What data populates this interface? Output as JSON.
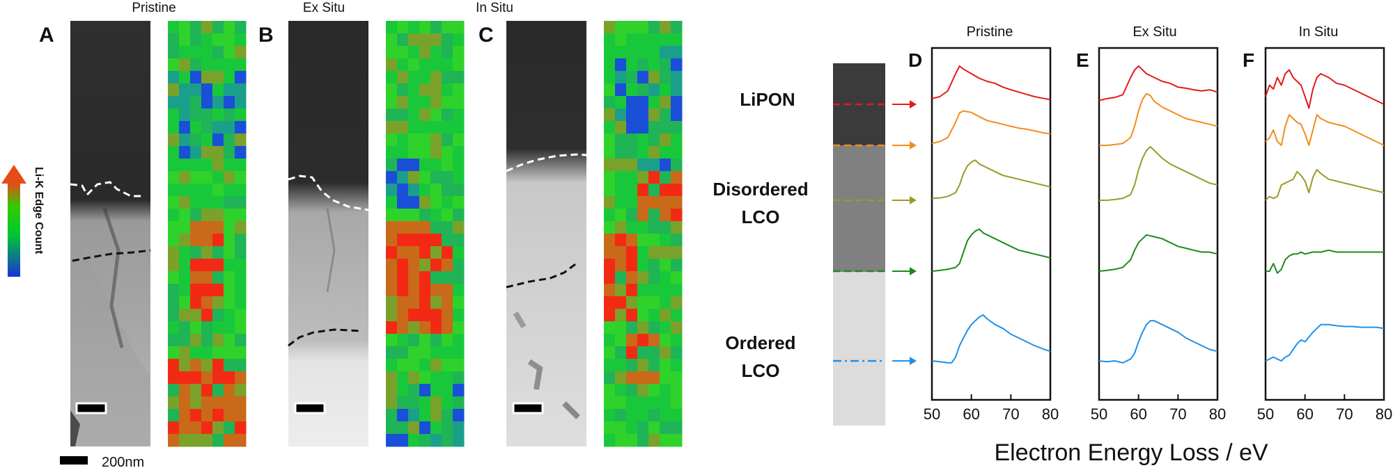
{
  "panels_left": [
    {
      "letter": "A",
      "title": "Pristine"
    },
    {
      "letter": "B",
      "title": "Ex Situ"
    },
    {
      "letter": "C",
      "title": "In Situ"
    }
  ],
  "colorbar_label": "Li-K Edge Count",
  "scale_bar_label": "200nm",
  "layers": {
    "lipon": "LiPON",
    "disordered_line1": "Disordered",
    "disordered_line2": "LCO",
    "ordered_line1": "Ordered",
    "ordered_line2": "LCO"
  },
  "panels_right": [
    {
      "letter": "D",
      "title": "Pristine"
    },
    {
      "letter": "E",
      "title": "Ex Situ"
    },
    {
      "letter": "F",
      "title": "In Situ"
    }
  ],
  "x_axis_label": "Electron Energy Loss / eV",
  "chart_data": {
    "type": "line",
    "xlabel": "Electron Energy Loss / eV",
    "ylabel": "",
    "xlim": [
      50,
      80
    ],
    "xticks": [
      50,
      60,
      70,
      80
    ],
    "yticks_shown": false,
    "panels": [
      {
        "title": "Pristine",
        "series": [
          {
            "color": "#e31a1c",
            "x": [
              50,
              52,
              54,
              56,
              57,
              58,
              60,
              62,
              64,
              66,
              68,
              70,
              72,
              74,
              76,
              78,
              80
            ],
            "y": [
              0.15,
              0.2,
              0.35,
              0.8,
              1.0,
              0.92,
              0.8,
              0.68,
              0.6,
              0.55,
              0.45,
              0.38,
              0.32,
              0.26,
              0.2,
              0.16,
              0.12
            ]
          },
          {
            "color": "#f28c1e",
            "x": [
              50,
              52,
              54,
              56,
              57,
              58,
              60,
              62,
              64,
              66,
              68,
              70,
              72,
              74,
              76,
              78,
              80
            ],
            "y": [
              0.05,
              0.1,
              0.2,
              0.6,
              0.85,
              0.9,
              0.86,
              0.75,
              0.65,
              0.6,
              0.55,
              0.5,
              0.45,
              0.42,
              0.38,
              0.33,
              0.3
            ]
          },
          {
            "color": "#9a9a2a",
            "x": [
              50,
              52,
              54,
              56,
              57,
              58,
              59,
              60,
              61,
              62,
              64,
              66,
              68,
              70,
              72,
              74,
              76,
              78,
              80
            ],
            "y": [
              0.05,
              0.06,
              0.1,
              0.2,
              0.4,
              0.7,
              0.9,
              1.0,
              1.05,
              0.95,
              0.85,
              0.75,
              0.65,
              0.6,
              0.55,
              0.5,
              0.45,
              0.4,
              0.35
            ]
          },
          {
            "color": "#1d8a1d",
            "x": [
              50,
              52,
              54,
              56,
              57,
              58,
              59,
              60,
              61,
              62,
              63,
              64,
              66,
              68,
              70,
              72,
              74,
              76,
              78,
              80
            ],
            "y": [
              0.0,
              0.02,
              0.05,
              0.1,
              0.2,
              0.5,
              0.8,
              0.95,
              1.05,
              1.1,
              1.0,
              0.95,
              0.85,
              0.75,
              0.65,
              0.55,
              0.5,
              0.45,
              0.4,
              0.35
            ]
          },
          {
            "color": "#1e90e8",
            "x": [
              50,
              52,
              54,
              55,
              56,
              57,
              58,
              59,
              60,
              61,
              62,
              63,
              64,
              66,
              68,
              70,
              72,
              74,
              76,
              78,
              80
            ],
            "y": [
              0.0,
              -0.02,
              -0.05,
              -0.05,
              0.1,
              0.4,
              0.6,
              0.8,
              0.95,
              1.05,
              1.15,
              1.2,
              1.1,
              0.95,
              0.85,
              0.7,
              0.6,
              0.5,
              0.4,
              0.32,
              0.25
            ]
          }
        ]
      },
      {
        "title": "Ex Situ",
        "series": [
          {
            "color": "#e31a1c",
            "x": [
              50,
              52,
              54,
              56,
              58,
              59,
              60,
              62,
              64,
              66,
              68,
              70,
              72,
              74,
              76,
              78,
              80
            ],
            "y": [
              0.1,
              0.15,
              0.18,
              0.25,
              0.7,
              0.9,
              1.0,
              0.8,
              0.7,
              0.6,
              0.55,
              0.45,
              0.42,
              0.38,
              0.35,
              0.38,
              0.32
            ]
          },
          {
            "color": "#f28c1e",
            "x": [
              50,
              52,
              54,
              56,
              58,
              59,
              60,
              61,
              62,
              63,
              64,
              66,
              68,
              70,
              72,
              74,
              76,
              78,
              80
            ],
            "y": [
              0.0,
              0.0,
              0.02,
              0.05,
              0.2,
              0.5,
              0.9,
              1.2,
              1.35,
              1.3,
              1.15,
              1.0,
              0.9,
              0.8,
              0.7,
              0.65,
              0.6,
              0.55,
              0.5
            ]
          },
          {
            "color": "#9a9a2a",
            "x": [
              50,
              52,
              54,
              56,
              58,
              59,
              60,
              61,
              62,
              63,
              64,
              66,
              68,
              70,
              72,
              74,
              76,
              78,
              80
            ],
            "y": [
              0.0,
              0.0,
              0.02,
              0.05,
              0.15,
              0.4,
              0.8,
              1.1,
              1.3,
              1.4,
              1.3,
              1.1,
              0.95,
              0.85,
              0.75,
              0.65,
              0.55,
              0.45,
              0.4
            ]
          },
          {
            "color": "#1d8a1d",
            "x": [
              50,
              52,
              54,
              56,
              58,
              59,
              60,
              62,
              64,
              66,
              68,
              70,
              72,
              74,
              76,
              78,
              80
            ],
            "y": [
              0.0,
              0.02,
              0.05,
              0.1,
              0.3,
              0.55,
              0.75,
              0.95,
              0.9,
              0.85,
              0.75,
              0.65,
              0.6,
              0.55,
              0.5,
              0.5,
              0.45
            ]
          },
          {
            "color": "#1e90e8",
            "x": [
              50,
              52,
              54,
              56,
              58,
              59,
              60,
              61,
              62,
              63,
              64,
              66,
              68,
              70,
              72,
              74,
              76,
              78,
              80
            ],
            "y": [
              0.0,
              -0.02,
              0.0,
              -0.05,
              0.05,
              0.2,
              0.5,
              0.75,
              0.95,
              1.05,
              1.05,
              0.95,
              0.85,
              0.75,
              0.6,
              0.5,
              0.4,
              0.3,
              0.25
            ]
          }
        ]
      },
      {
        "title": "In Situ",
        "series": [
          {
            "color": "#e31a1c",
            "x": [
              50,
              51,
              52,
              53,
              54,
              55,
              56,
              57,
              58,
              59,
              60,
              61,
              62,
              63,
              64,
              66,
              68,
              70,
              72,
              74,
              76,
              78,
              80
            ],
            "y": [
              0.2,
              0.5,
              0.4,
              0.7,
              0.5,
              0.8,
              0.9,
              0.7,
              0.6,
              0.5,
              0.2,
              -0.1,
              0.4,
              0.7,
              0.8,
              0.7,
              0.55,
              0.5,
              0.4,
              0.3,
              0.2,
              0.1,
              0.0
            ]
          },
          {
            "color": "#f28c1e",
            "x": [
              50,
              51,
              52,
              53,
              54,
              55,
              56,
              57,
              58,
              59,
              60,
              61,
              62,
              63,
              64,
              66,
              68,
              70,
              72,
              74,
              76,
              78,
              80
            ],
            "y": [
              0.1,
              0.2,
              0.4,
              0.1,
              0.0,
              0.5,
              0.8,
              0.7,
              0.6,
              0.55,
              0.3,
              0.0,
              0.4,
              0.8,
              0.7,
              0.6,
              0.55,
              0.5,
              0.4,
              0.3,
              0.2,
              0.1,
              0.0
            ]
          },
          {
            "color": "#9a9a2a",
            "x": [
              50,
              51,
              52,
              53,
              54,
              55,
              56,
              57,
              58,
              59,
              60,
              61,
              62,
              63,
              64,
              66,
              68,
              70,
              72,
              74,
              76,
              78,
              80
            ],
            "y": [
              0.0,
              0.1,
              0.05,
              0.1,
              0.4,
              0.45,
              0.5,
              0.55,
              0.75,
              0.65,
              0.5,
              0.2,
              0.6,
              0.8,
              0.7,
              0.55,
              0.5,
              0.45,
              0.4,
              0.35,
              0.3,
              0.25,
              0.2
            ]
          },
          {
            "color": "#1d8a1d",
            "x": [
              50,
              51,
              52,
              53,
              54,
              55,
              56,
              57,
              58,
              59,
              60,
              62,
              64,
              66,
              68,
              70,
              72,
              74,
              76,
              78,
              80
            ],
            "y": [
              0.0,
              0.0,
              0.2,
              -0.05,
              0.05,
              0.3,
              0.4,
              0.45,
              0.45,
              0.5,
              0.45,
              0.5,
              0.5,
              0.55,
              0.5,
              0.5,
              0.5,
              0.5,
              0.5,
              0.5,
              0.5
            ]
          },
          {
            "color": "#1e90e8",
            "x": [
              50,
              51,
              52,
              53,
              54,
              55,
              56,
              57,
              58,
              59,
              60,
              62,
              64,
              66,
              68,
              70,
              72,
              74,
              76,
              78,
              80
            ],
            "y": [
              0.0,
              0.05,
              0.1,
              0.05,
              0.0,
              0.1,
              0.15,
              0.3,
              0.45,
              0.55,
              0.5,
              0.75,
              0.95,
              0.95,
              0.92,
              0.9,
              0.9,
              0.88,
              0.88,
              0.88,
              0.85
            ]
          }
        ]
      }
    ]
  }
}
